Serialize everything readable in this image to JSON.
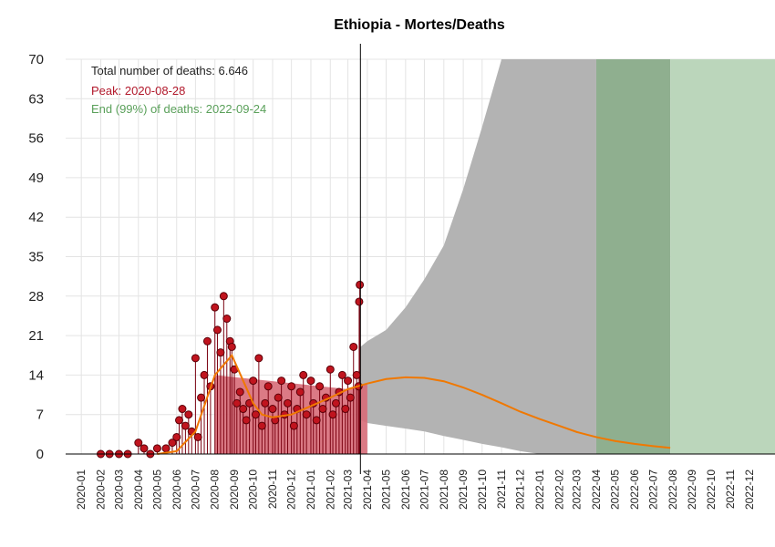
{
  "chart_data": {
    "type": "bar",
    "title": "Ethiopia - Mortes/Deaths",
    "xlabel": "",
    "ylabel": "",
    "ylim": [
      0,
      70
    ],
    "yticks": [
      0,
      7,
      14,
      21,
      28,
      35,
      42,
      49,
      56,
      63,
      70
    ],
    "xlim": [
      "2019-12-07",
      "2023-01-11"
    ],
    "x_tick_labels": [
      "2020-01",
      "2020-02",
      "2020-03",
      "2020-04",
      "2020-05",
      "2020-06",
      "2020-07",
      "2020-08",
      "2020-09",
      "2020-10",
      "2020-11",
      "2020-12",
      "2021-01",
      "2021-02",
      "2021-03",
      "2021-04",
      "2021-05",
      "2021-06",
      "2021-07",
      "2021-08",
      "2021-09",
      "2021-10",
      "2021-11",
      "2021-12",
      "2022-01",
      "2022-02",
      "2022-03",
      "2022-04",
      "2022-05",
      "2022-06",
      "2022-07",
      "2022-08",
      "2022-09",
      "2022-10",
      "2022-11",
      "2022-12"
    ],
    "x_tick_dates": [
      "2020-01-01",
      "2020-02-01",
      "2020-03-01",
      "2020-04-01",
      "2020-05-01",
      "2020-06-01",
      "2020-07-01",
      "2020-08-01",
      "2020-09-01",
      "2020-10-01",
      "2020-11-01",
      "2020-12-01",
      "2021-01-01",
      "2021-02-01",
      "2021-03-01",
      "2021-04-01",
      "2021-05-01",
      "2021-06-01",
      "2021-07-01",
      "2021-08-01",
      "2021-09-01",
      "2021-10-01",
      "2021-11-01",
      "2021-12-01",
      "2022-01-01",
      "2022-02-01",
      "2022-03-01",
      "2022-04-01",
      "2022-05-01",
      "2022-06-01",
      "2022-07-01",
      "2022-08-01",
      "2022-09-01",
      "2022-10-01",
      "2022-11-01",
      "2022-12-01"
    ],
    "grid": true,
    "annotations": [
      {
        "text": "Total number of deaths: 6.646",
        "color": "#222222"
      },
      {
        "text": "Peak: 2020-08-28",
        "color": "#b2182b"
      },
      {
        "text": "End (99%) of deaths: 2022-09-24",
        "color": "#5aa05a"
      }
    ],
    "current_date": "2021-03-21",
    "observed_daily_deaths": {
      "x": [
        "2020-02-01",
        "2020-02-15",
        "2020-03-01",
        "2020-03-15",
        "2020-04-01",
        "2020-04-10",
        "2020-04-20",
        "2020-05-01",
        "2020-05-15",
        "2020-05-25",
        "2020-06-01",
        "2020-06-05",
        "2020-06-10",
        "2020-06-15",
        "2020-06-20",
        "2020-06-25",
        "2020-07-01",
        "2020-07-05",
        "2020-07-10",
        "2020-07-15",
        "2020-07-20",
        "2020-07-25",
        "2020-08-01",
        "2020-08-05",
        "2020-08-10",
        "2020-08-15",
        "2020-08-20",
        "2020-08-25",
        "2020-08-28",
        "2020-09-01",
        "2020-09-05",
        "2020-09-10",
        "2020-09-15",
        "2020-09-20",
        "2020-09-25",
        "2020-10-01",
        "2020-10-05",
        "2020-10-10",
        "2020-10-15",
        "2020-10-20",
        "2020-10-25",
        "2020-11-01",
        "2020-11-05",
        "2020-11-10",
        "2020-11-15",
        "2020-11-20",
        "2020-11-25",
        "2020-12-01",
        "2020-12-05",
        "2020-12-10",
        "2020-12-15",
        "2020-12-20",
        "2020-12-25",
        "2021-01-01",
        "2021-01-05",
        "2021-01-10",
        "2021-01-15",
        "2021-01-20",
        "2021-01-25",
        "2021-02-01",
        "2021-02-05",
        "2021-02-10",
        "2021-02-15",
        "2021-02-20",
        "2021-02-25",
        "2021-03-01",
        "2021-03-05",
        "2021-03-10",
        "2021-03-15",
        "2021-03-18",
        "2021-03-19",
        "2021-03-20"
      ],
      "y": [
        0,
        0,
        0,
        0,
        2,
        1,
        0,
        1,
        1,
        2,
        3,
        6,
        8,
        5,
        7,
        4,
        17,
        3,
        10,
        14,
        20,
        12,
        26,
        22,
        18,
        28,
        24,
        20,
        19,
        15,
        9,
        11,
        8,
        6,
        9,
        13,
        7,
        17,
        5,
        9,
        12,
        8,
        6,
        10,
        13,
        7,
        9,
        12,
        5,
        8,
        11,
        14,
        7,
        13,
        9,
        6,
        12,
        8,
        10,
        15,
        7,
        9,
        11,
        14,
        8,
        13,
        10,
        19,
        14,
        12,
        27,
        30
      ]
    },
    "series": [
      {
        "name": "",
        "type": "fitted_curve",
        "color": "#f07800",
        "x": [
          "2020-05-01",
          "2020-06-01",
          "2020-07-01",
          "2020-08-01",
          "2020-08-28",
          "2020-09-15",
          "2020-10-01",
          "2020-10-15",
          "2020-11-01",
          "2020-12-01",
          "2021-01-01",
          "2021-02-01",
          "2021-03-01",
          "2021-04-01",
          "2021-05-01",
          "2021-06-01",
          "2021-07-01",
          "2021-08-01",
          "2021-09-01",
          "2021-10-01",
          "2021-11-01",
          "2021-12-01",
          "2022-01-01",
          "2022-02-01",
          "2022-03-01",
          "2022-04-01",
          "2022-05-01",
          "2022-06-01",
          "2022-07-01",
          "2022-07-28"
        ],
        "y": [
          0,
          0.5,
          4,
          14,
          17.5,
          13,
          9,
          7,
          6.5,
          7,
          8.5,
          10,
          11.5,
          12.5,
          13.3,
          13.6,
          13.5,
          12.9,
          11.8,
          10.5,
          9,
          7.5,
          6.2,
          5,
          3.9,
          3,
          2.3,
          1.8,
          1.4,
          1.1
        ]
      },
      {
        "name": "",
        "type": "fitted_area",
        "color": "#d76b78",
        "x": [
          "2020-08-01",
          "2021-03-01",
          "2021-04-01"
        ],
        "y": [
          14,
          11.5,
          12.5
        ]
      }
    ],
    "prediction_band": {
      "color": "#b3b3b3",
      "x": [
        "2021-03-21",
        "2021-04-01",
        "2021-05-01",
        "2021-06-01",
        "2021-07-01",
        "2021-08-01",
        "2021-09-01",
        "2021-10-01",
        "2021-11-01",
        "2021-12-01",
        "2022-01-01",
        "2022-02-01",
        "2022-03-01",
        "2022-04-01"
      ],
      "upper": [
        19,
        20,
        22,
        26,
        31,
        37,
        47,
        58,
        70,
        70,
        70,
        70,
        70,
        70
      ],
      "lower": [
        6,
        5.5,
        5,
        4.5,
        4,
        3.2,
        2.5,
        1.8,
        1.2,
        0.5,
        0,
        0,
        0,
        0
      ]
    },
    "shaded_regions": [
      {
        "from": "2022-04-01",
        "to": "2022-07-28",
        "color": "#8faf8f"
      },
      {
        "from": "2022-07-28",
        "to": "2023-01-11",
        "color": "#bbd6bb"
      }
    ]
  }
}
